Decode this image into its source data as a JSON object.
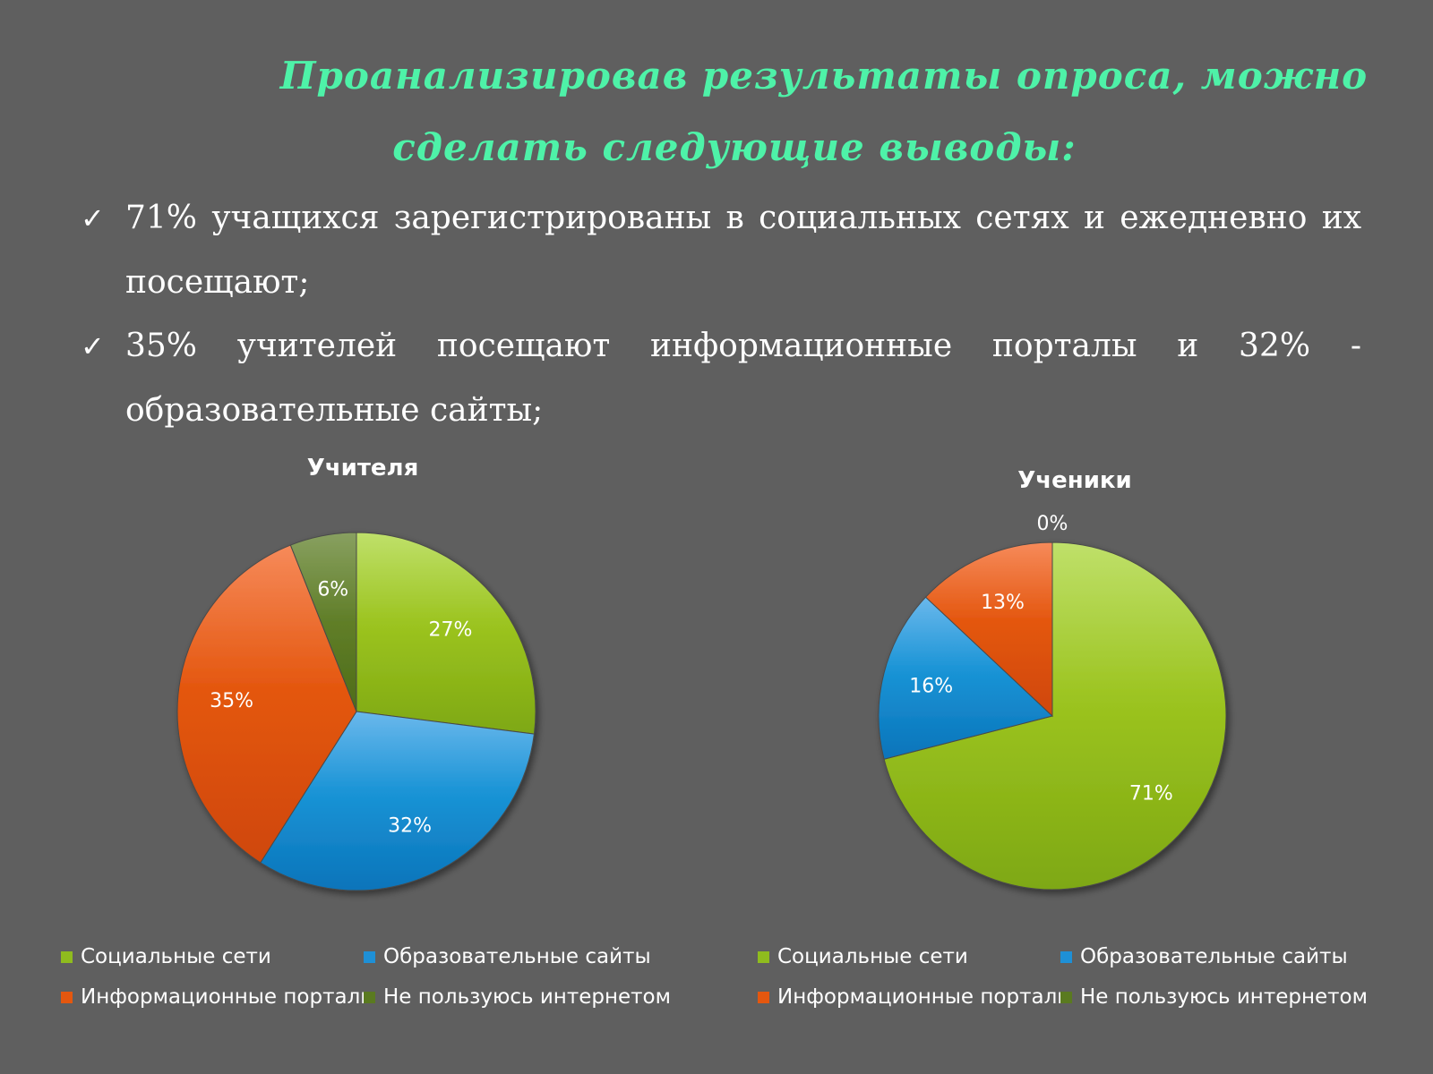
{
  "heading": {
    "line1": "Проанализировав результаты опроса, можно",
    "line2": "сделать следующие выводы:"
  },
  "bullets": [
    {
      "icon": "check-icon",
      "text": "71% учащихся зарегистрированы в социальных сетях и ежедневно их посещают;"
    },
    {
      "icon": "check-icon",
      "text": "35% учителей посещают информационные порталы и 32% - образовательные сайты;"
    }
  ],
  "colors": {
    "background": "#5f5f5f",
    "heading": "#4ef2a8",
    "social": "#8fbc1e",
    "educational": "#1e90d6",
    "portals": "#e4570f",
    "no_internet": "#5a7a20"
  },
  "chart_data": [
    {
      "type": "pie",
      "title": "Учителя",
      "categories": [
        "Социальные сети",
        "Образовательные сайты",
        "Информационные порталы",
        "Не пользуюсь интернетом"
      ],
      "values": [
        27,
        32,
        35,
        6
      ],
      "labels": [
        "27%",
        "32%",
        "35%",
        "6%"
      ],
      "legend": "bottom"
    },
    {
      "type": "pie",
      "title": "Ученики",
      "categories": [
        "Социальные сети",
        "Образовательные сайты",
        "Информационные порталы",
        "Не пользуюсь интернетом"
      ],
      "values": [
        71,
        16,
        13,
        0
      ],
      "labels": [
        "71%",
        "16%",
        "13%",
        "0%"
      ],
      "legend": "bottom"
    }
  ]
}
